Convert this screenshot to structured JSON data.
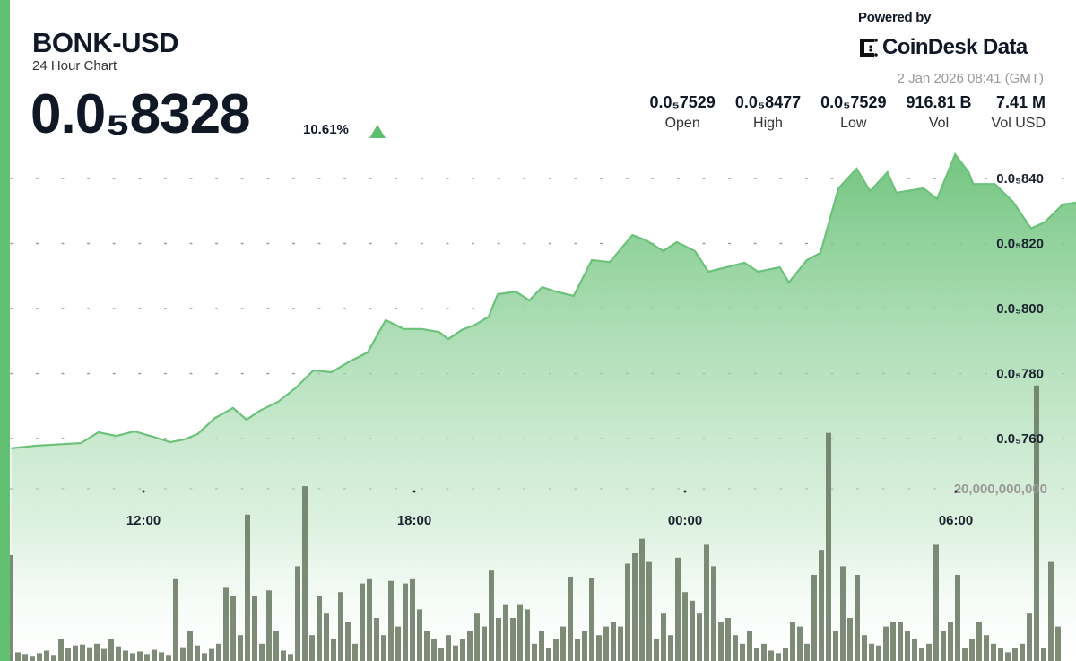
{
  "header": {
    "title": "BONK-USD",
    "subtitle": "24 Hour Chart",
    "price": "0.0₅8328",
    "change": "10.61%",
    "change_direction": "up",
    "powered_by": "Powered by",
    "brand": "CoinDesk Data",
    "timestamp": "2 Jan 2026 08:41 (GMT)"
  },
  "stats": [
    {
      "value": "0.0₅7529",
      "label": "Open"
    },
    {
      "value": "0.0₅8477",
      "label": "High"
    },
    {
      "value": "0.0₅7529",
      "label": "Low"
    },
    {
      "value": "916.81 B",
      "label": "Vol"
    },
    {
      "value": "7.41 M",
      "label": "Vol USD"
    }
  ],
  "colors": {
    "accent": "#62c072",
    "line": "#6cc27a",
    "volume": "#66775f",
    "text": "#101826"
  },
  "chart_data": {
    "type": "area",
    "price_axis": {
      "ticks": [
        8.4e-06,
        8.2e-06,
        8e-06,
        7.8e-06,
        7.6e-06
      ],
      "tick_labels": [
        "0.0₅840",
        "0.0₅820",
        "0.0₅800",
        "0.0₅780",
        "0.0₅760"
      ],
      "grid": "dotted"
    },
    "volume_axis": {
      "ticks": [
        20000000000
      ],
      "tick_labels": [
        "20,000,000,000"
      ]
    },
    "x_axis": {
      "tick_labels": [
        "12:00",
        "18:00",
        "00:00",
        "06:00"
      ]
    },
    "price_series": {
      "time": [
        "09:04",
        "09:37",
        "10:13",
        "10:37",
        "11:00",
        "11:24",
        "11:48",
        "12:12",
        "12:36",
        "12:54",
        "13:12",
        "13:35",
        "13:59",
        "14:17",
        "14:35",
        "14:59",
        "15:23",
        "15:46",
        "16:10",
        "16:34",
        "16:58",
        "17:22",
        "17:46",
        "18:10",
        "18:33",
        "18:45",
        "19:03",
        "19:21",
        "19:39",
        "19:51",
        "20:15",
        "20:33",
        "20:50",
        "21:08",
        "21:32",
        "21:56",
        "22:20",
        "22:50",
        "23:08",
        "23:31",
        "23:49",
        "00:13",
        "00:31",
        "00:55",
        "01:19",
        "01:37",
        "02:06",
        "02:18",
        "02:42",
        "03:00",
        "03:24",
        "03:48",
        "04:06",
        "04:29",
        "04:41",
        "05:17",
        "05:35",
        "05:59",
        "06:17",
        "06:23",
        "06:52",
        "07:16",
        "07:40",
        "07:58",
        "08:22",
        "08:40"
      ],
      "price": [
        7.57e-06,
        7.578e-06,
        7.583e-06,
        7.586e-06,
        7.619e-06,
        7.608e-06,
        7.622e-06,
        7.606e-06,
        7.589e-06,
        7.597e-06,
        7.614e-06,
        7.663e-06,
        7.694e-06,
        7.658e-06,
        7.686e-06,
        7.713e-06,
        7.757e-06,
        7.81e-06,
        7.804e-06,
        7.837e-06,
        7.865e-06,
        7.964e-06,
        7.937e-06,
        7.937e-06,
        7.928e-06,
        7.906e-06,
        7.934e-06,
        7.95e-06,
        7.975e-06,
        8.044e-06,
        8.052e-06,
        8.025e-06,
        8.066e-06,
        8.052e-06,
        8.039e-06,
        8.149e-06,
        8.143e-06,
        8.226e-06,
        8.21e-06,
        8.177e-06,
        8.204e-06,
        8.177e-06,
        8.113e-06,
        8.127e-06,
        8.141e-06,
        8.113e-06,
        8.127e-06,
        8.08e-06,
        8.149e-06,
        8.171e-06,
        8.37e-06,
        8.43e-06,
        8.361e-06,
        8.419e-06,
        8.356e-06,
        8.37e-06,
        8.337e-06,
        8.474e-06,
        8.419e-06,
        8.383e-06,
        8.383e-06,
        8.328e-06,
        8.246e-06,
        8.265e-06,
        8.32e-06,
        8.326e-06
      ]
    },
    "volume_series": {
      "values": [
        12300000000.0,
        1000000000.0,
        800000000.0,
        600000000.0,
        900000000.0,
        1200000000.0,
        700000000.0,
        2500000000.0,
        1500000000.0,
        1800000000.0,
        1900000000.0,
        1600000000.0,
        2000000000.0,
        1400000000.0,
        2600000000.0,
        1700000000.0,
        1200000000.0,
        900000000.0,
        1100000000.0,
        800000000.0,
        1300000000.0,
        1000000000.0,
        700000000.0,
        9500000000.0,
        1600000000.0,
        3500000000.0,
        1800000000.0,
        900000000.0,
        1400000000.0,
        2000000000.0,
        8500000000.0,
        7500000000.0,
        3000000000.0,
        17000000000.0,
        7500000000.0,
        2000000000.0,
        8200000000.0,
        3500000000.0,
        1200000000.0,
        800000000.0,
        11000000000.0,
        20300000000.0,
        3000000000.0,
        7500000000.0,
        5500000000.0,
        2500000000.0,
        8000000000.0,
        4500000000.0,
        2000000000.0,
        9000000000.0,
        9500000000.0,
        5000000000.0,
        3000000000.0,
        9300000000.0,
        4000000000.0,
        9000000000.0,
        9500000000.0,
        6000000000.0,
        3500000000.0,
        2500000000.0,
        1500000000.0,
        3000000000.0,
        1800000000.0,
        2500000000.0,
        3500000000.0,
        5500000000.0,
        4000000000.0,
        10500000000.0,
        5000000000.0,
        6500000000.0,
        5000000000.0,
        6500000000.0,
        6000000000.0,
        2000000000.0,
        3500000000.0,
        1500000000.0,
        2500000000.0,
        4000000000.0,
        9800000000.0,
        2500000000.0,
        3500000000.0,
        9600000000.0,
        3000000000.0,
        4000000000.0,
        4500000000.0,
        4000000000.0,
        11300000000.0,
        12500000000.0,
        14200000000.0,
        11500000000.0,
        2500000000.0,
        5500000000.0,
        3000000000.0,
        12000000000.0,
        8000000000.0,
        7000000000.0,
        5500000000.0,
        13500000000.0,
        11000000000.0,
        4500000000.0,
        5000000000.0,
        3000000000.0,
        2000000000.0,
        3500000000.0,
        1500000000.0,
        2000000000.0,
        1200000000.0,
        900000000.0,
        1500000000.0,
        4500000000.0,
        4000000000.0,
        2000000000.0,
        10000000000.0,
        12900000000.0,
        26500000000.0,
        3500000000.0,
        11000000000.0,
        5000000000.0,
        10000000000.0,
        3000000000.0,
        2000000000.0,
        1800000000.0,
        4000000000.0,
        4500000000.0,
        4500000000.0,
        3500000000.0,
        2500000000.0,
        1500000000.0,
        2000000000.0,
        13500000000.0,
        3500000000.0,
        4500000000.0,
        10000000000.0,
        1500000000.0,
        2500000000.0,
        4500000000.0,
        3000000000.0,
        2000000000.0,
        1500000000.0,
        1000000000.0,
        1500000000.0,
        2000000000.0,
        5500000000.0,
        32000000000.0,
        1500000000.0,
        11500000000.0,
        4000000000.0
      ]
    }
  }
}
